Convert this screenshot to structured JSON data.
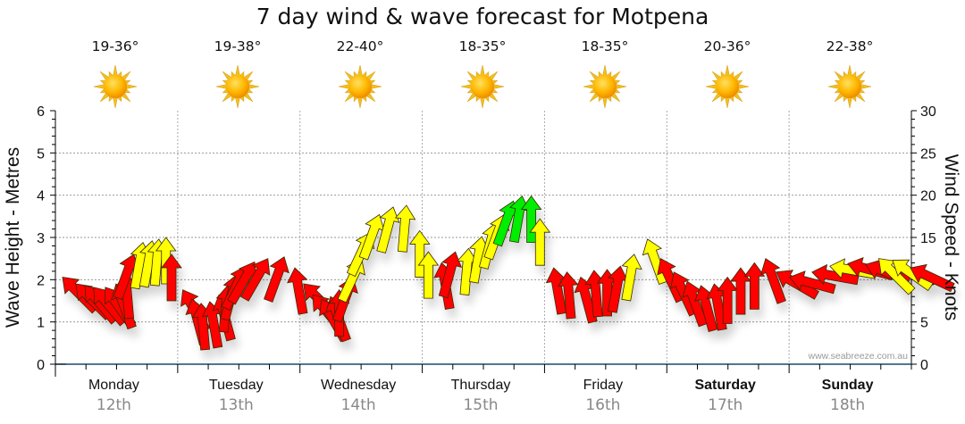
{
  "colors": {
    "red": "#ff0000",
    "yellow": "#ffff00",
    "green": "#00ee00",
    "axis": "#1a4a6a"
  },
  "chart_data": {
    "type": "scatter",
    "title": "7 day wind & wave forecast for Motpena",
    "ylabel_left": "Wave Height - Metres",
    "ylabel_right": "Wind Speed - Knots",
    "ylim_left": [
      0,
      6
    ],
    "ylim_right": [
      0,
      30
    ],
    "yticks_left": [
      "0",
      "1",
      "2",
      "3",
      "4",
      "5",
      "6"
    ],
    "yticks_right": [
      "0",
      "5",
      "10",
      "15",
      "20",
      "25",
      "30"
    ],
    "grid": true,
    "credit": "www.seabreeze.com.au",
    "days": [
      {
        "name": "Monday",
        "date": "12th",
        "temp": "19-36°",
        "icon": "sunny-icon",
        "bold": false
      },
      {
        "name": "Tuesday",
        "date": "13th",
        "temp": "19-38°",
        "icon": "sunny-icon",
        "bold": false
      },
      {
        "name": "Wednesday",
        "date": "14th",
        "temp": "22-40°",
        "icon": "sunny-icon",
        "bold": false
      },
      {
        "name": "Thursday",
        "date": "15th",
        "temp": "18-35°",
        "icon": "sunny-icon",
        "bold": false
      },
      {
        "name": "Friday",
        "date": "16th",
        "temp": "18-35°",
        "icon": "sunny-icon",
        "bold": false
      },
      {
        "name": "Saturday",
        "date": "17th",
        "temp": "20-36°",
        "icon": "sunny-icon",
        "bold": true
      },
      {
        "name": "Sunday",
        "date": "18th",
        "temp": "22-38°",
        "icon": "sunny-icon",
        "bold": true
      }
    ],
    "wind_series": {
      "name": "Wind Speed (knots)",
      "note": "hour = hours since Monday 00:00; knots = arrow tip value; dir = arrow pointing angle in degrees (0 = up, negative = toward left); band = colour",
      "points": [
        {
          "hour": 1.4,
          "knots": 10.3,
          "dir": -45,
          "band": "red"
        },
        {
          "hour": 4.0,
          "knots": 9.5,
          "dir": -45,
          "band": "red"
        },
        {
          "hour": 5.8,
          "knots": 9.3,
          "dir": -40,
          "band": "red"
        },
        {
          "hour": 7.5,
          "knots": 9.1,
          "dir": -40,
          "band": "red"
        },
        {
          "hour": 9.8,
          "knots": 9.1,
          "dir": -35,
          "band": "red"
        },
        {
          "hour": 11.9,
          "knots": 9.5,
          "dir": -20,
          "band": "red"
        },
        {
          "hour": 13.7,
          "knots": 10.9,
          "dir": -5,
          "band": "red"
        },
        {
          "hour": 15.4,
          "knots": 13.0,
          "dir": 20,
          "band": "red"
        },
        {
          "hour": 17.2,
          "knots": 14.4,
          "dir": 10,
          "band": "yellow"
        },
        {
          "hour": 19.0,
          "knots": 14.6,
          "dir": 10,
          "band": "yellow"
        },
        {
          "hour": 20.3,
          "knots": 14.8,
          "dir": 5,
          "band": "yellow"
        },
        {
          "hour": 21.7,
          "knots": 15.0,
          "dir": 0,
          "band": "yellow"
        },
        {
          "hour": 22.8,
          "knots": 13.0,
          "dir": 0,
          "band": "red"
        },
        {
          "hour": 25.0,
          "knots": 8.8,
          "dir": -30,
          "band": "red"
        },
        {
          "hour": 26.8,
          "knots": 7.7,
          "dir": -15,
          "band": "red"
        },
        {
          "hour": 28.6,
          "knots": 7.2,
          "dir": -5,
          "band": "red"
        },
        {
          "hour": 30.3,
          "knots": 7.4,
          "dir": -10,
          "band": "red"
        },
        {
          "hour": 32.1,
          "knots": 8.2,
          "dir": -15,
          "band": "red"
        },
        {
          "hour": 33.8,
          "knots": 9.3,
          "dir": 5,
          "band": "red"
        },
        {
          "hour": 35.6,
          "knots": 10.6,
          "dir": 15,
          "band": "red"
        },
        {
          "hour": 37.3,
          "knots": 11.6,
          "dir": 25,
          "band": "red"
        },
        {
          "hour": 39.1,
          "knots": 12.1,
          "dir": 30,
          "band": "red"
        },
        {
          "hour": 41.7,
          "knots": 12.5,
          "dir": 30,
          "band": "red"
        },
        {
          "hour": 44.9,
          "knots": 12.7,
          "dir": 20,
          "band": "red"
        },
        {
          "hour": 47.0,
          "knots": 11.4,
          "dir": -10,
          "band": "red"
        },
        {
          "hour": 48.7,
          "knots": 9.5,
          "dir": -45,
          "band": "red"
        },
        {
          "hour": 50.5,
          "knots": 8.2,
          "dir": -40,
          "band": "red"
        },
        {
          "hour": 52.2,
          "knots": 7.7,
          "dir": -30,
          "band": "red"
        },
        {
          "hour": 54.0,
          "knots": 8.0,
          "dir": -20,
          "band": "red"
        },
        {
          "hour": 55.7,
          "knots": 8.8,
          "dir": 0,
          "band": "red"
        },
        {
          "hour": 58.4,
          "knots": 10.3,
          "dir": 20,
          "band": "red"
        },
        {
          "hour": 60.1,
          "knots": 12.5,
          "dir": 25,
          "band": "yellow"
        },
        {
          "hour": 61.9,
          "knots": 15.6,
          "dir": 25,
          "band": "yellow"
        },
        {
          "hour": 63.6,
          "knots": 17.7,
          "dir": 20,
          "band": "yellow"
        },
        {
          "hour": 66.3,
          "knots": 18.6,
          "dir": 15,
          "band": "yellow"
        },
        {
          "hour": 68.9,
          "knots": 18.8,
          "dir": 5,
          "band": "yellow"
        },
        {
          "hour": 71.5,
          "knots": 15.8,
          "dir": 0,
          "band": "yellow"
        },
        {
          "hour": 73.2,
          "knots": 13.3,
          "dir": 0,
          "band": "yellow"
        },
        {
          "hour": 75.8,
          "knots": 12.0,
          "dir": -10,
          "band": "red"
        },
        {
          "hour": 78.5,
          "knots": 13.3,
          "dir": 15,
          "band": "red"
        },
        {
          "hour": 81.1,
          "knots": 13.7,
          "dir": 5,
          "band": "yellow"
        },
        {
          "hour": 83.7,
          "knots": 15.1,
          "dir": 10,
          "band": "yellow"
        },
        {
          "hour": 86.4,
          "knots": 16.7,
          "dir": 15,
          "band": "yellow"
        },
        {
          "hour": 88.1,
          "knots": 17.7,
          "dir": 20,
          "band": "yellow"
        },
        {
          "hour": 89.9,
          "knots": 19.3,
          "dir": 20,
          "band": "green"
        },
        {
          "hour": 91.6,
          "knots": 19.9,
          "dir": 10,
          "band": "green"
        },
        {
          "hour": 93.4,
          "knots": 19.9,
          "dir": 0,
          "band": "green"
        },
        {
          "hour": 95.1,
          "knots": 17.2,
          "dir": 0,
          "band": "yellow"
        },
        {
          "hour": 97.8,
          "knots": 11.4,
          "dir": -10,
          "band": "red"
        },
        {
          "hour": 100.4,
          "knots": 10.9,
          "dir": -5,
          "band": "red"
        },
        {
          "hour": 103.1,
          "knots": 10.3,
          "dir": -15,
          "band": "red"
        },
        {
          "hour": 105.7,
          "knots": 11.1,
          "dir": -5,
          "band": "red"
        },
        {
          "hour": 108.3,
          "knots": 11.2,
          "dir": 0,
          "band": "red"
        },
        {
          "hour": 110.9,
          "knots": 11.6,
          "dir": 10,
          "band": "red"
        },
        {
          "hour": 113.6,
          "knots": 13.0,
          "dir": 10,
          "band": "yellow"
        },
        {
          "hour": 116.2,
          "knots": 14.8,
          "dir": -20,
          "band": "yellow"
        },
        {
          "hour": 118.8,
          "knots": 12.5,
          "dir": -25,
          "band": "red"
        },
        {
          "hour": 121.4,
          "knots": 10.9,
          "dir": -25,
          "band": "red"
        },
        {
          "hour": 124.0,
          "knots": 9.8,
          "dir": -20,
          "band": "red"
        },
        {
          "hour": 126.7,
          "knots": 9.3,
          "dir": -15,
          "band": "red"
        },
        {
          "hour": 129.3,
          "knots": 9.5,
          "dir": -10,
          "band": "red"
        },
        {
          "hour": 131.9,
          "knots": 10.3,
          "dir": 0,
          "band": "red"
        },
        {
          "hour": 134.5,
          "knots": 11.4,
          "dir": 0,
          "band": "red"
        },
        {
          "hour": 137.2,
          "knots": 12.0,
          "dir": 0,
          "band": "red"
        },
        {
          "hour": 139.4,
          "knots": 12.5,
          "dir": -20,
          "band": "red"
        },
        {
          "hour": 141.5,
          "knots": 10.9,
          "dir": -60,
          "band": "red"
        },
        {
          "hour": 144.1,
          "knots": 10.3,
          "dir": -75,
          "band": "red"
        },
        {
          "hour": 148.5,
          "knots": 10.9,
          "dir": -80,
          "band": "red"
        },
        {
          "hour": 152.0,
          "knots": 11.6,
          "dir": -80,
          "band": "yellow"
        },
        {
          "hour": 155.5,
          "knots": 11.9,
          "dir": -75,
          "band": "red"
        },
        {
          "hour": 159.0,
          "knots": 11.8,
          "dir": -70,
          "band": "red"
        },
        {
          "hour": 161.6,
          "knots": 12.5,
          "dir": -45,
          "band": "yellow"
        },
        {
          "hour": 164.3,
          "knots": 12.3,
          "dir": -55,
          "band": "yellow"
        },
        {
          "hour": 167.8,
          "knots": 11.4,
          "dir": -65,
          "band": "red"
        }
      ]
    }
  }
}
